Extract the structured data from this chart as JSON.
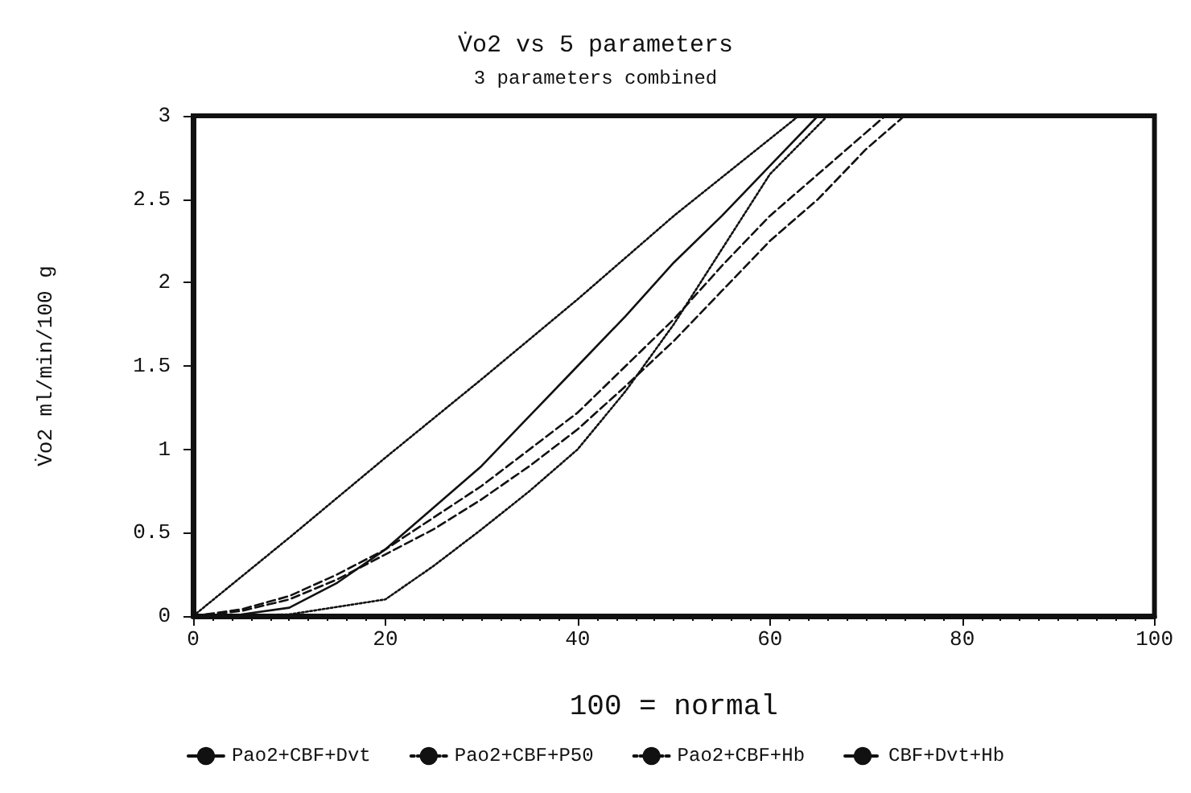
{
  "chart_data": {
    "type": "line",
    "title": "V̇o2 vs 5 parameters",
    "subtitle": "3 parameters combined",
    "xlabel": "100 = normal",
    "ylabel": "V̇o2 ml/min/100 g",
    "xlim": [
      0,
      100
    ],
    "xticks": [
      0,
      20,
      40,
      60,
      80,
      100
    ],
    "ylim": [
      0,
      3
    ],
    "yticks": [
      0,
      0.5,
      1,
      1.5,
      2,
      2.5,
      3
    ],
    "grid": false,
    "legend": "bottom",
    "marker": "none",
    "series": [
      {
        "name": "Pao2+CBF+Dvt",
        "color": "#111111",
        "line_style": "solid",
        "x": [
          0,
          5,
          10,
          15,
          20,
          25,
          30,
          35,
          40,
          45,
          50,
          55,
          60,
          65
        ],
        "values": [
          0,
          0.01,
          0.05,
          0.2,
          0.4,
          0.65,
          0.9,
          1.2,
          1.5,
          1.8,
          2.12,
          2.4,
          2.7,
          3
        ]
      },
      {
        "name": "Pao2+CBF+P50",
        "color": "#111111",
        "line_style": "dotted",
        "x": [
          0,
          10,
          20,
          30,
          40,
          50,
          63
        ],
        "values": [
          0,
          0.47,
          0.95,
          1.42,
          1.9,
          2.4,
          3
        ]
      },
      {
        "name": "Pao2+CBF+Hb",
        "color": "#111111",
        "line_style": "dotted",
        "x": [
          0,
          10,
          20,
          25,
          30,
          35,
          40,
          45,
          50,
          55,
          60,
          66
        ],
        "values": [
          0,
          0.01,
          0.1,
          0.3,
          0.52,
          0.75,
          1,
          1.35,
          1.75,
          2.2,
          2.65,
          3
        ]
      },
      {
        "name": "CBF+Dvt+Hb",
        "color": "#111111",
        "line_style": "dashed",
        "x": [
          0,
          5,
          10,
          15,
          20,
          25,
          30,
          35,
          40,
          45,
          50,
          55,
          60,
          65,
          70,
          74
        ],
        "values": [
          0,
          0.03,
          0.1,
          0.22,
          0.37,
          0.52,
          0.7,
          0.9,
          1.12,
          1.38,
          1.65,
          1.95,
          2.25,
          2.5,
          2.8,
          3
        ]
      },
      {
        "color": "#111111",
        "line_style": "dashed",
        "x": [
          0,
          5,
          10,
          15,
          20,
          30,
          40,
          50,
          55,
          60,
          65,
          72
        ],
        "values": [
          0,
          0.04,
          0.12,
          0.25,
          0.4,
          0.78,
          1.22,
          1.78,
          2.1,
          2.4,
          2.65,
          3
        ]
      }
    ]
  }
}
